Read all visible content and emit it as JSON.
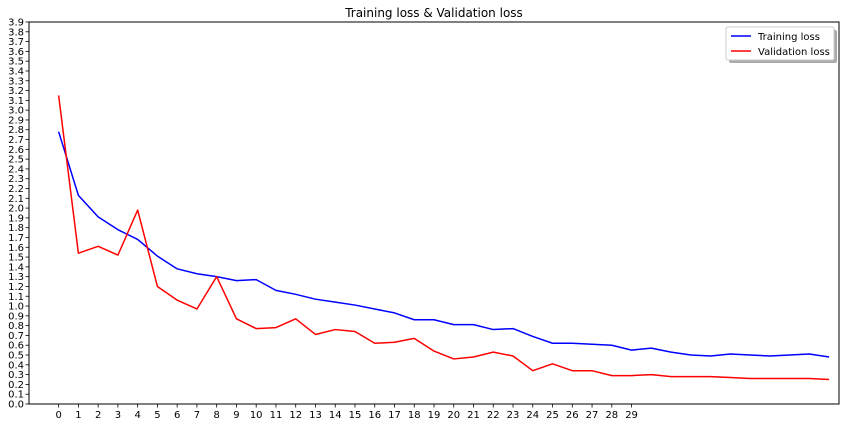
{
  "chart_data": {
    "type": "line",
    "title": "Training loss & Validation loss",
    "xlabel": "",
    "ylabel": "",
    "x_ticks": [
      0,
      1,
      2,
      3,
      4,
      5,
      6,
      7,
      8,
      9,
      10,
      11,
      12,
      13,
      14,
      15,
      16,
      17,
      18,
      19,
      20,
      21,
      22,
      23,
      24,
      25,
      26,
      27,
      28,
      29
    ],
    "y_ticks": [
      0.0,
      0.1,
      0.2,
      0.3,
      0.4,
      0.5,
      0.6,
      0.7,
      0.8,
      0.9,
      1.0,
      1.1,
      1.2,
      1.3,
      1.4,
      1.5,
      1.6,
      1.7,
      1.8,
      1.9,
      2.0,
      2.1,
      2.2,
      2.3,
      2.4,
      2.5,
      2.6,
      2.7,
      2.8,
      2.9,
      3.0,
      3.1,
      3.2,
      3.3,
      3.4,
      3.5,
      3.6,
      3.7,
      3.8,
      3.9
    ],
    "xlim": [
      -1.5,
      39.5
    ],
    "ylim": [
      0.0,
      3.9
    ],
    "grid": false,
    "legend_position": "top-right",
    "series": [
      {
        "name": "Training loss",
        "color": "#0000ff",
        "x": [
          0,
          1,
          2,
          3,
          4,
          5,
          6,
          7,
          8,
          9,
          10,
          11,
          12,
          13,
          14,
          15,
          16,
          17,
          18,
          19,
          20,
          21,
          22,
          23,
          24,
          25,
          26,
          27,
          28,
          29,
          30,
          31,
          32,
          33,
          34,
          35,
          36,
          37,
          38,
          39
        ],
        "values": [
          2.78,
          2.13,
          1.91,
          1.78,
          1.68,
          1.51,
          1.38,
          1.33,
          1.3,
          1.26,
          1.27,
          1.16,
          1.12,
          1.07,
          1.04,
          1.01,
          0.97,
          0.93,
          0.86,
          0.86,
          0.81,
          0.81,
          0.76,
          0.77,
          0.69,
          0.62,
          0.62,
          0.61,
          0.6,
          0.55,
          0.57,
          0.53,
          0.5,
          0.49,
          0.51,
          0.5,
          0.49,
          0.5,
          0.51,
          0.48
        ]
      },
      {
        "name": "Validation loss",
        "color": "#ff0000",
        "x": [
          0,
          1,
          2,
          3,
          4,
          5,
          6,
          7,
          8,
          9,
          10,
          11,
          12,
          13,
          14,
          15,
          16,
          17,
          18,
          19,
          20,
          21,
          22,
          23,
          24,
          25,
          26,
          27,
          28,
          29,
          30,
          31,
          32,
          33,
          34,
          35,
          36,
          37,
          38,
          39
        ],
        "values": [
          3.15,
          1.54,
          1.61,
          1.52,
          1.98,
          1.2,
          1.06,
          0.97,
          1.3,
          0.87,
          0.77,
          0.78,
          0.87,
          0.71,
          0.76,
          0.74,
          0.62,
          0.63,
          0.67,
          0.54,
          0.46,
          0.48,
          0.53,
          0.49,
          0.34,
          0.41,
          0.34,
          0.34,
          0.29,
          0.29,
          0.3,
          0.28,
          0.28,
          0.28,
          0.27,
          0.26,
          0.26,
          0.26,
          0.26,
          0.25
        ]
      }
    ]
  }
}
